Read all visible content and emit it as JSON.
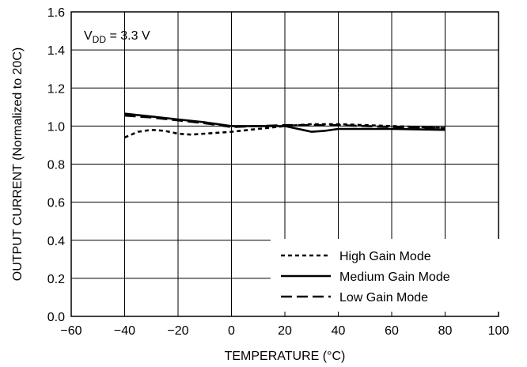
{
  "chart_data": {
    "type": "line",
    "title": "",
    "xlabel": "TEMPERATURE (°C)",
    "ylabel": "OUTPUT CURRENT (Normalized to 20C)",
    "xlim": [
      -60,
      100
    ],
    "ylim": [
      0.0,
      1.6
    ],
    "x_ticks": [
      -60,
      -40,
      -20,
      0,
      20,
      40,
      60,
      80,
      100
    ],
    "y_ticks": [
      0.0,
      0.2,
      0.4,
      0.6,
      0.8,
      1.0,
      1.2,
      1.4,
      1.6
    ],
    "x_tick_labels": [
      "−60",
      "−40",
      "−20",
      "0",
      "20",
      "40",
      "60",
      "80",
      "100"
    ],
    "y_tick_labels": [
      "0.0",
      "0.2",
      "0.4",
      "0.6",
      "0.8",
      "1.0",
      "1.2",
      "1.4",
      "1.6"
    ],
    "grid": true,
    "legend_position": "bottom-right",
    "annotation": {
      "v_main": "V",
      "v_sub": "DD",
      "v_rest": " = 3.3 V"
    },
    "series": [
      {
        "name": "High Gain Mode",
        "style": "dotted",
        "x": [
          -40,
          -35,
          -30,
          -25,
          -20,
          -15,
          -10,
          -5,
          0,
          10,
          20,
          30,
          40,
          60,
          80
        ],
        "y": [
          0.94,
          0.97,
          0.98,
          0.975,
          0.96,
          0.955,
          0.96,
          0.965,
          0.97,
          0.985,
          1.0,
          1.01,
          1.01,
          1.0,
          0.99
        ]
      },
      {
        "name": "Medium Gain Mode",
        "style": "solid",
        "x": [
          -40,
          -30,
          -20,
          -10,
          0,
          10,
          20,
          25,
          30,
          35,
          40,
          60,
          80
        ],
        "y": [
          1.065,
          1.05,
          1.035,
          1.02,
          1.0,
          1.0,
          1.0,
          0.985,
          0.97,
          0.975,
          0.985,
          0.985,
          0.98
        ]
      },
      {
        "name": "Low Gain Mode",
        "style": "dashed",
        "x": [
          -40,
          -30,
          -20,
          -10,
          0,
          10,
          20,
          30,
          40,
          60,
          80
        ],
        "y": [
          1.055,
          1.045,
          1.03,
          1.015,
          0.995,
          1.0,
          1.005,
          1.005,
          1.005,
          0.995,
          0.99
        ]
      }
    ]
  }
}
